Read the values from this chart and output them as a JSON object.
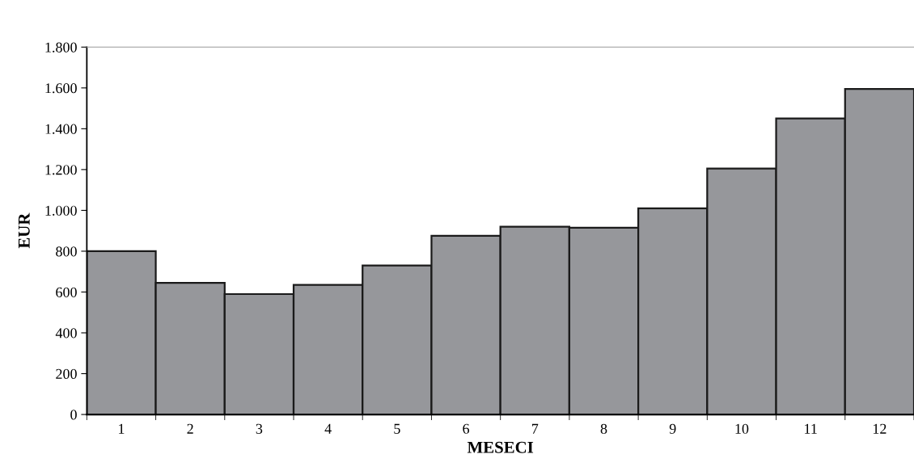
{
  "chart_data": {
    "type": "bar",
    "xlabel": "MESECI",
    "ylabel": "EUR",
    "categories": [
      "1",
      "2",
      "3",
      "4",
      "5",
      "6",
      "7",
      "8",
      "9",
      "10",
      "11",
      "12"
    ],
    "values": [
      800,
      645,
      590,
      635,
      730,
      875,
      920,
      915,
      1010,
      1205,
      1450,
      1595
    ],
    "color": "#96979b",
    "ylim": [
      0,
      1800
    ],
    "yticks": [
      0,
      200,
      400,
      600,
      800,
      {
        "value": 1000,
        "label": "1.000"
      },
      {
        "value": 1200,
        "label": "1.200"
      },
      {
        "value": 1400,
        "label": "1.400"
      },
      {
        "value": 1600,
        "label": "1.600"
      },
      {
        "value": 1800,
        "label": "1.800"
      }
    ],
    "grid": false,
    "legend": false
  }
}
